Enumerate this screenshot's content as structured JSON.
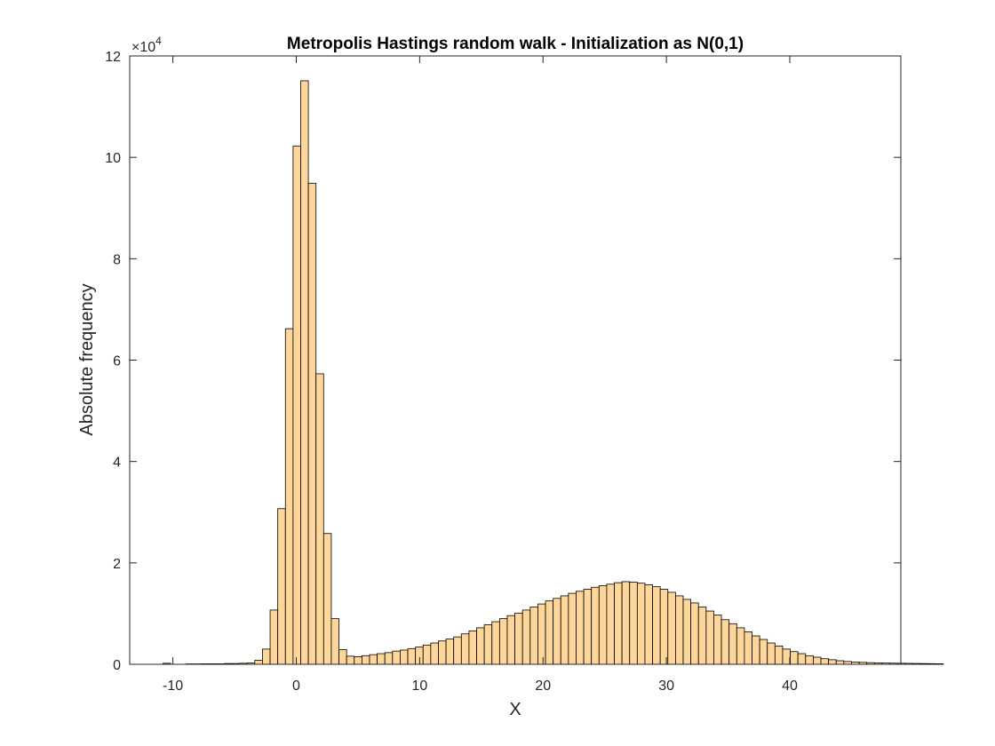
{
  "chart_data": {
    "type": "bar",
    "title": "Metropolis Hastings random walk - Initialization as N(0,1)",
    "xlabel": "X",
    "ylabel": "Absolute frequency",
    "y_exponent_label": "×10",
    "y_exponent_power": "4",
    "xlim": [
      -13.5,
      49
    ],
    "ylim": [
      0,
      120000
    ],
    "xticks": [
      -10,
      0,
      10,
      20,
      30,
      40
    ],
    "xtick_labels": [
      "-10",
      "0",
      "10",
      "20",
      "30",
      "40"
    ],
    "yticks": [
      0,
      20000,
      40000,
      60000,
      80000,
      100000,
      120000
    ],
    "ytick_labels": [
      "0",
      "2",
      "4",
      "6",
      "8",
      "10",
      "12"
    ],
    "grid": false,
    "bar_color": "#FFD699",
    "edge_color": "#000000",
    "bin_width": 0.62,
    "bin_start": -10.8,
    "values": [
      200,
      0,
      0,
      80,
      80,
      100,
      100,
      100,
      150,
      150,
      200,
      250,
      800,
      3000,
      10700,
      30700,
      66200,
      102200,
      115100,
      94900,
      57300,
      25800,
      9000,
      2900,
      1600,
      1500,
      1700,
      1900,
      2100,
      2300,
      2600,
      2800,
      3100,
      3400,
      3800,
      4200,
      4600,
      5000,
      5400,
      6000,
      6600,
      7200,
      7800,
      8400,
      9000,
      9600,
      10100,
      10700,
      11300,
      11900,
      12500,
      13000,
      13500,
      14000,
      14400,
      14800,
      15200,
      15500,
      15800,
      16100,
      16300,
      16200,
      16000,
      15700,
      15300,
      14800,
      14200,
      13500,
      12800,
      12100,
      11300,
      10500,
      9700,
      8800,
      8000,
      7200,
      6400,
      5600,
      4900,
      4200,
      3600,
      3000,
      2500,
      2100,
      1700,
      1400,
      1100,
      900,
      700,
      550,
      450,
      380,
      320,
      280,
      250,
      220,
      200,
      180,
      160,
      140,
      120,
      100
    ]
  }
}
